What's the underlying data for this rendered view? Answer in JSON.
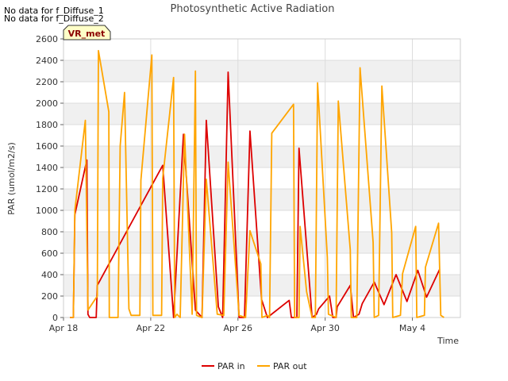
{
  "notices": [
    "No data for f_Diffuse_1",
    "No data for f_Diffuse_2"
  ],
  "site_label": "VR_met",
  "colors": {
    "par_in": "#dd0000",
    "par_out": "#ffa500",
    "band": "#f0f0f0",
    "grid": "#dcdcdc"
  },
  "chart_data": {
    "type": "line",
    "title": "Photosynthetic Active Radiation",
    "xlabel": "Time",
    "ylabel": "PAR (umol/m2/s)",
    "ylim": [
      0,
      2600
    ],
    "xlim": [
      0,
      18.2
    ],
    "yticks": [
      0,
      200,
      400,
      600,
      800,
      1000,
      1200,
      1400,
      1600,
      1800,
      2000,
      2200,
      2400,
      2600
    ],
    "xticks": [
      {
        "value": 0,
        "label": "Apr 18"
      },
      {
        "value": 4,
        "label": "Apr 22"
      },
      {
        "value": 8,
        "label": "Apr 26"
      },
      {
        "value": 12,
        "label": "Apr 30"
      },
      {
        "value": 16,
        "label": "May 4"
      }
    ],
    "legend": [
      "PAR in",
      "PAR out"
    ],
    "series": [
      {
        "name": "PAR in",
        "points": [
          [
            0.3,
            0
          ],
          [
            0.45,
            0
          ],
          [
            0.52,
            960
          ],
          [
            1.07,
            1470
          ],
          [
            1.12,
            30
          ],
          [
            1.2,
            0
          ],
          [
            1.5,
            0
          ],
          [
            1.55,
            300
          ],
          [
            4.55,
            1420
          ],
          [
            5.05,
            0
          ],
          [
            5.5,
            1710
          ],
          [
            6.05,
            70
          ],
          [
            6.35,
            0
          ],
          [
            6.55,
            1840
          ],
          [
            7.1,
            100
          ],
          [
            7.3,
            0
          ],
          [
            7.55,
            2290
          ],
          [
            8.05,
            0
          ],
          [
            8.3,
            0
          ],
          [
            8.55,
            1740
          ],
          [
            9.08,
            170
          ],
          [
            9.35,
            0
          ],
          [
            10.35,
            160
          ],
          [
            10.45,
            0
          ],
          [
            10.7,
            0
          ],
          [
            10.8,
            1580
          ],
          [
            11.4,
            0
          ],
          [
            11.6,
            30
          ],
          [
            11.7,
            80
          ],
          [
            12.2,
            200
          ],
          [
            12.35,
            0
          ],
          [
            12.5,
            0
          ],
          [
            12.55,
            100
          ],
          [
            13.15,
            300
          ],
          [
            13.3,
            0
          ],
          [
            13.55,
            30
          ],
          [
            13.7,
            130
          ],
          [
            14.25,
            330
          ],
          [
            14.7,
            120
          ],
          [
            15.25,
            400
          ],
          [
            15.75,
            150
          ],
          [
            16.25,
            440
          ],
          [
            16.65,
            190
          ],
          [
            17.25,
            450
          ]
        ]
      },
      {
        "name": "PAR out",
        "points": [
          [
            0.3,
            0
          ],
          [
            0.45,
            0
          ],
          [
            0.52,
            1000
          ],
          [
            1.0,
            1840
          ],
          [
            1.12,
            70
          ],
          [
            1.55,
            200
          ],
          [
            1.6,
            2490
          ],
          [
            2.08,
            1920
          ],
          [
            2.1,
            0
          ],
          [
            2.5,
            0
          ],
          [
            2.6,
            1600
          ],
          [
            2.8,
            2100
          ],
          [
            3.0,
            80
          ],
          [
            3.1,
            20
          ],
          [
            3.5,
            20
          ],
          [
            3.55,
            1280
          ],
          [
            4.05,
            2450
          ],
          [
            4.1,
            20
          ],
          [
            4.5,
            20
          ],
          [
            4.55,
            1300
          ],
          [
            5.05,
            2240
          ],
          [
            5.1,
            0
          ],
          [
            5.2,
            30
          ],
          [
            5.35,
            0
          ],
          [
            5.55,
            1710
          ],
          [
            5.9,
            30
          ],
          [
            6.05,
            2300
          ],
          [
            6.1,
            20
          ],
          [
            6.35,
            0
          ],
          [
            6.55,
            1290
          ],
          [
            7.05,
            30
          ],
          [
            7.35,
            20
          ],
          [
            7.55,
            1450
          ],
          [
            8.05,
            20
          ],
          [
            8.35,
            0
          ],
          [
            8.55,
            810
          ],
          [
            9.05,
            500
          ],
          [
            9.1,
            0
          ],
          [
            9.35,
            20
          ],
          [
            9.45,
            0
          ],
          [
            9.55,
            1720
          ],
          [
            10.55,
            1990
          ],
          [
            10.6,
            0
          ],
          [
            10.8,
            0
          ],
          [
            10.85,
            850
          ],
          [
            11.15,
            240
          ],
          [
            11.4,
            0
          ],
          [
            11.55,
            0
          ],
          [
            11.65,
            2190
          ],
          [
            12.1,
            560
          ],
          [
            12.15,
            30
          ],
          [
            12.5,
            0
          ],
          [
            12.6,
            2020
          ],
          [
            13.15,
            630
          ],
          [
            13.2,
            0
          ],
          [
            13.45,
            0
          ],
          [
            13.6,
            2330
          ],
          [
            14.2,
            700
          ],
          [
            14.25,
            0
          ],
          [
            14.45,
            20
          ],
          [
            14.6,
            2160
          ],
          [
            15.05,
            790
          ],
          [
            15.1,
            0
          ],
          [
            15.45,
            20
          ],
          [
            15.55,
            410
          ],
          [
            16.15,
            850
          ],
          [
            16.2,
            0
          ],
          [
            16.55,
            20
          ],
          [
            16.6,
            470
          ],
          [
            17.2,
            880
          ],
          [
            17.3,
            20
          ],
          [
            17.45,
            0
          ]
        ]
      }
    ]
  }
}
